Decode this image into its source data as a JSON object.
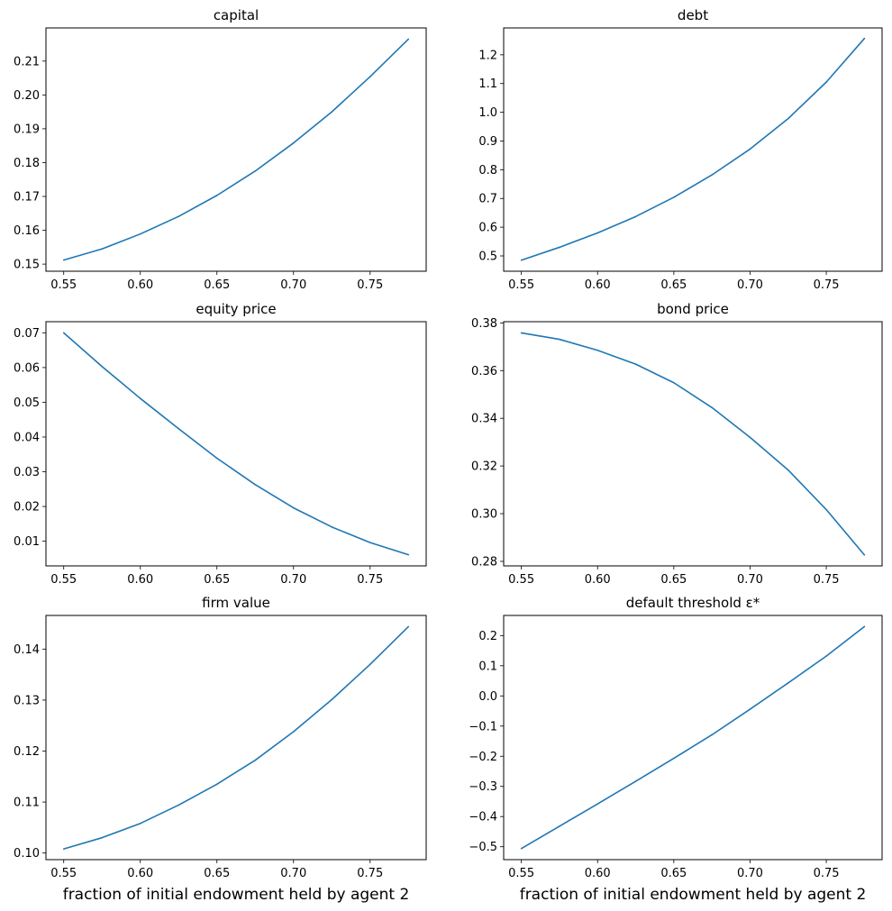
{
  "figure": {
    "line_color": "#1f77b4"
  },
  "chart_data": [
    {
      "type": "line",
      "title": "capital",
      "xlabel": "",
      "ylabel": "",
      "x": [
        0.55,
        0.575,
        0.6,
        0.625,
        0.65,
        0.675,
        0.7,
        0.725,
        0.75,
        0.775
      ],
      "series": [
        {
          "name": "capital",
          "values": [
            0.1512,
            0.1545,
            0.1589,
            0.1641,
            0.1703,
            0.1775,
            0.1858,
            0.195,
            0.2054,
            0.2165
          ]
        }
      ],
      "xlim": [
        0.5384,
        0.7866
      ],
      "ylim": [
        0.1479,
        0.2198
      ],
      "xticks": [
        0.55,
        0.6,
        0.65,
        0.7,
        0.75
      ],
      "xtick_labels": [
        "0.55",
        "0.60",
        "0.65",
        "0.70",
        "0.75"
      ],
      "yticks": [
        0.15,
        0.16,
        0.17,
        0.18,
        0.19,
        0.2,
        0.21
      ],
      "ytick_labels": [
        "0.15",
        "0.16",
        "0.17",
        "0.18",
        "0.19",
        "0.20",
        "0.21"
      ]
    },
    {
      "type": "line",
      "title": "debt",
      "xlabel": "",
      "ylabel": "",
      "x": [
        0.55,
        0.575,
        0.6,
        0.625,
        0.65,
        0.675,
        0.7,
        0.725,
        0.75,
        0.775
      ],
      "series": [
        {
          "name": "debt",
          "values": [
            0.485,
            0.53,
            0.58,
            0.637,
            0.704,
            0.782,
            0.872,
            0.978,
            1.105,
            1.257
          ]
        }
      ],
      "xlim": [
        0.5384,
        0.7866
      ],
      "ylim": [
        0.4467,
        1.2936
      ],
      "xticks": [
        0.55,
        0.6,
        0.65,
        0.7,
        0.75
      ],
      "xtick_labels": [
        "0.55",
        "0.60",
        "0.65",
        "0.70",
        "0.75"
      ],
      "yticks": [
        0.5,
        0.6,
        0.7,
        0.8,
        0.9,
        1.0,
        1.1,
        1.2
      ],
      "ytick_labels": [
        "0.5",
        "0.6",
        "0.7",
        "0.8",
        "0.9",
        "1.0",
        "1.1",
        "1.2"
      ]
    },
    {
      "type": "line",
      "title": "equity price",
      "xlabel": "",
      "ylabel": "",
      "x": [
        0.55,
        0.575,
        0.6,
        0.625,
        0.65,
        0.675,
        0.7,
        0.725,
        0.75,
        0.775
      ],
      "series": [
        {
          "name": "equity price",
          "values": [
            0.07,
            0.0603,
            0.0511,
            0.0424,
            0.0339,
            0.0263,
            0.0196,
            0.0141,
            0.0096,
            0.0061
          ]
        }
      ],
      "xlim": [
        0.5384,
        0.7866
      ],
      "ylim": [
        0.0029,
        0.0732
      ],
      "xticks": [
        0.55,
        0.6,
        0.65,
        0.7,
        0.75
      ],
      "xtick_labels": [
        "0.55",
        "0.60",
        "0.65",
        "0.70",
        "0.75"
      ],
      "yticks": [
        0.01,
        0.02,
        0.03,
        0.04,
        0.05,
        0.06,
        0.07
      ],
      "ytick_labels": [
        "0.01",
        "0.02",
        "0.03",
        "0.04",
        "0.05",
        "0.06",
        "0.07"
      ]
    },
    {
      "type": "line",
      "title": "bond price",
      "xlabel": "",
      "ylabel": "",
      "x": [
        0.55,
        0.575,
        0.6,
        0.625,
        0.65,
        0.675,
        0.7,
        0.725,
        0.75,
        0.775
      ],
      "series": [
        {
          "name": "bond price",
          "values": [
            0.3758,
            0.3731,
            0.3685,
            0.3627,
            0.3549,
            0.3445,
            0.332,
            0.3183,
            0.3017,
            0.2827
          ]
        }
      ],
      "xlim": [
        0.5384,
        0.7866
      ],
      "ylim": [
        0.2781,
        0.3805
      ],
      "xticks": [
        0.55,
        0.6,
        0.65,
        0.7,
        0.75
      ],
      "xtick_labels": [
        "0.55",
        "0.60",
        "0.65",
        "0.70",
        "0.75"
      ],
      "yticks": [
        0.28,
        0.3,
        0.32,
        0.34,
        0.36,
        0.38
      ],
      "ytick_labels": [
        "0.28",
        "0.30",
        "0.32",
        "0.34",
        "0.36",
        "0.38"
      ]
    },
    {
      "type": "line",
      "title": "firm value",
      "xlabel": "fraction of initial endowment held by agent 2",
      "ylabel": "",
      "x": [
        0.55,
        0.575,
        0.6,
        0.625,
        0.65,
        0.675,
        0.7,
        0.725,
        0.75,
        0.775
      ],
      "series": [
        {
          "name": "firm value",
          "values": [
            0.1008,
            0.103,
            0.1058,
            0.1094,
            0.1135,
            0.1182,
            0.1238,
            0.1301,
            0.137,
            0.1444
          ]
        }
      ],
      "xlim": [
        0.5384,
        0.7866
      ],
      "ylim": [
        0.0987,
        0.1466
      ],
      "xticks": [
        0.55,
        0.6,
        0.65,
        0.7,
        0.75
      ],
      "xtick_labels": [
        "0.55",
        "0.60",
        "0.65",
        "0.70",
        "0.75"
      ],
      "yticks": [
        0.1,
        0.11,
        0.12,
        0.13,
        0.14
      ],
      "ytick_labels": [
        "0.10",
        "0.11",
        "0.12",
        "0.13",
        "0.14"
      ]
    },
    {
      "type": "line",
      "title": "default threshold ε*",
      "xlabel": "fraction of initial endowment held by agent 2",
      "ylabel": "",
      "x": [
        0.55,
        0.575,
        0.6,
        0.625,
        0.65,
        0.675,
        0.7,
        0.725,
        0.75,
        0.775
      ],
      "series": [
        {
          "name": "default threshold",
          "values": [
            -0.506,
            -0.432,
            -0.358,
            -0.283,
            -0.207,
            -0.129,
            -0.044,
            0.043,
            0.132,
            0.23
          ]
        }
      ],
      "xlim": [
        0.5384,
        0.7866
      ],
      "ylim": [
        -0.5428,
        0.2668
      ],
      "xticks": [
        0.55,
        0.6,
        0.65,
        0.7,
        0.75
      ],
      "xtick_labels": [
        "0.55",
        "0.60",
        "0.65",
        "0.70",
        "0.75"
      ],
      "yticks": [
        -0.5,
        -0.4,
        -0.3,
        -0.2,
        -0.1,
        0.0,
        0.1,
        0.2
      ],
      "ytick_labels": [
        "−0.5",
        "−0.4",
        "−0.3",
        "−0.2",
        "−0.1",
        "0.0",
        "0.1",
        "0.2"
      ]
    }
  ]
}
